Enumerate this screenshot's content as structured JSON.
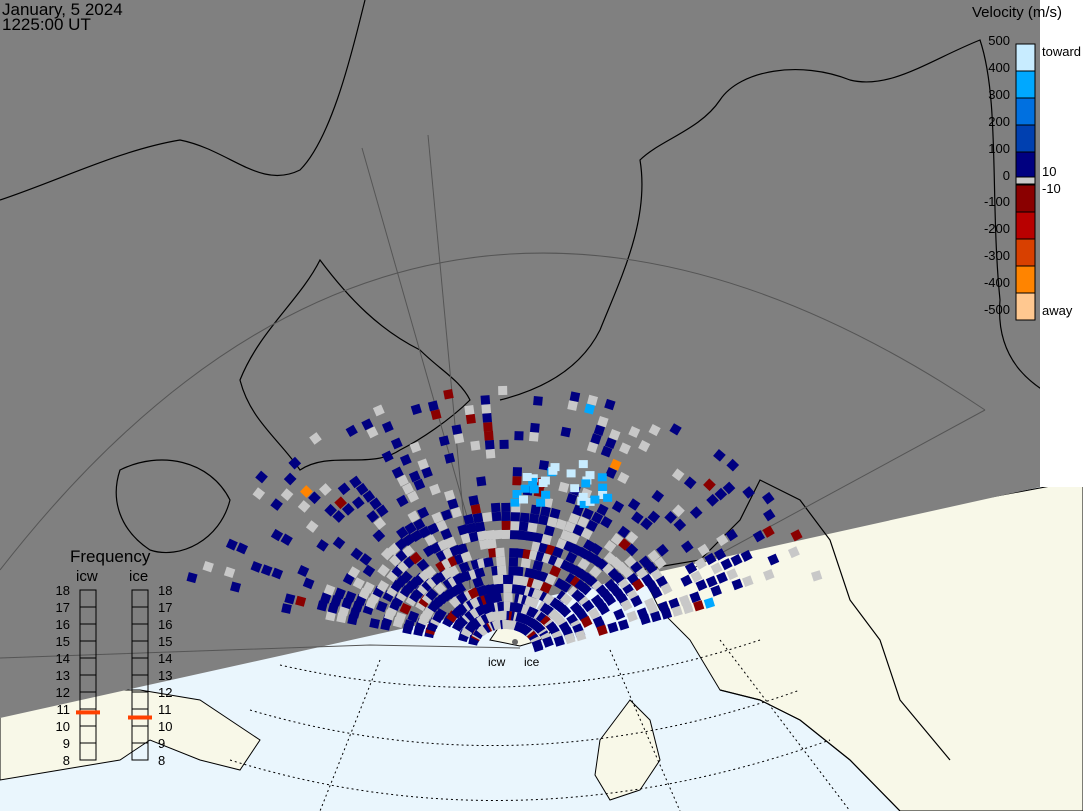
{
  "header": {
    "date": "January, 5 2024",
    "time": "1225:00 UT"
  },
  "colorbar": {
    "title": "Velocity (m/s)",
    "ticks": [
      "500",
      "400",
      "300",
      "200",
      "100",
      "0",
      "-100",
      "-200",
      "-300",
      "-400",
      "-500"
    ],
    "toward_label": "toward",
    "away_label": "away",
    "pos_threshold": "10",
    "neg_threshold": "-10",
    "colors": [
      "#c8ecff",
      "#00a8ff",
      "#0070e0",
      "#0040b0",
      "#000080",
      "#8a0000",
      "#b80000",
      "#d84000",
      "#ff8400",
      "#ffc890"
    ],
    "ground_scatter_color": "#c8c8c8"
  },
  "frequency_panel": {
    "title": "Frequency",
    "radars": [
      {
        "name": "icw",
        "frequency_mhz": 10.8
      },
      {
        "name": "ice",
        "frequency_mhz": 10.5
      }
    ],
    "scale": [
      "18",
      "17",
      "16",
      "15",
      "14",
      "13",
      "12",
      "11",
      "10",
      "9",
      "8"
    ],
    "marker_color": "#ff4000"
  },
  "map": {
    "night_color": "#808080",
    "ocean_color": "#eaf6fd",
    "land_color": "#f8f8e8",
    "radar_labels": [
      "icw",
      "ice"
    ]
  }
}
